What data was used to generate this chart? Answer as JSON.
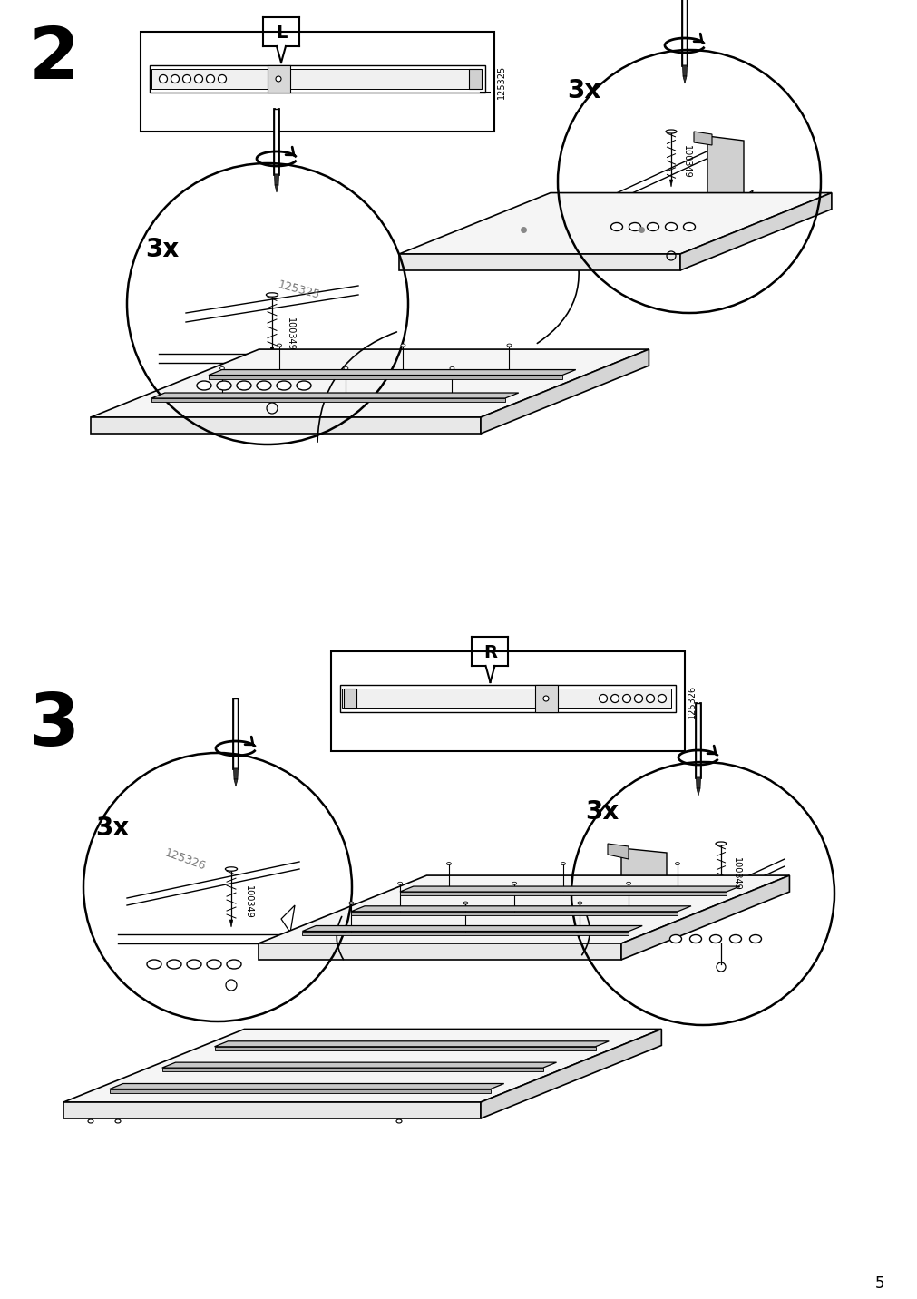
{
  "bg_color": "#ffffff",
  "line_color": "#000000",
  "gray_color": "#999999",
  "light_gray": "#bbbbbb",
  "step2_number": "2",
  "step3_number": "3",
  "page_number": "5",
  "label_L": "L",
  "label_R": "R",
  "part_num_L": "125325",
  "part_num_R": "125326",
  "screw_code": "100349",
  "count_3x": "3x",
  "fig_width": 10.12,
  "fig_height": 14.32,
  "dpi": 100
}
